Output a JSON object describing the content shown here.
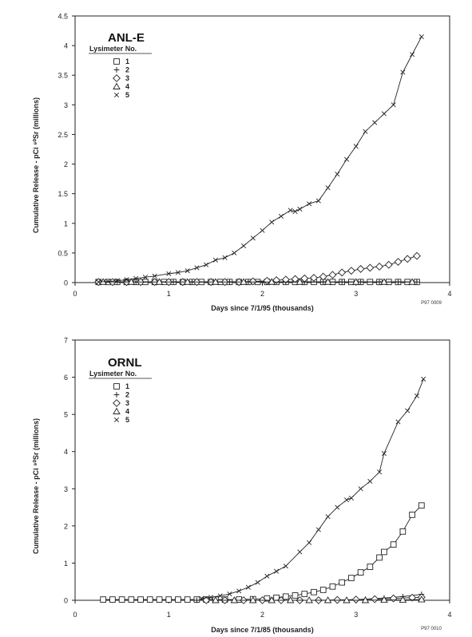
{
  "chart_data": [
    {
      "type": "line",
      "title": "ANL-E",
      "xlabel": "Days since 7/1/95 (thousands)",
      "ylabel": "Cumulative Release - pCi ⁹⁰Sr (millions)",
      "note": "P97 0009",
      "legend_title": "Lysimeter No.",
      "legend_position": "top-left",
      "xlim": [
        0,
        4
      ],
      "ylim": [
        0,
        4.5
      ],
      "xticks": [
        "0",
        "1",
        "2",
        "3",
        "4"
      ],
      "yticks": [
        "0",
        "0.5",
        "1",
        "1.5",
        "2",
        "2.5",
        "3",
        "3.5",
        "4",
        "4.5"
      ],
      "series": [
        {
          "name": "1",
          "marker": "square",
          "x": [
            0.25,
            0.35,
            0.45,
            0.55,
            0.65,
            0.75,
            0.85,
            0.95,
            1.05,
            1.15,
            1.25,
            1.35,
            1.45,
            1.55,
            1.65,
            1.75,
            1.85,
            1.95,
            2.05,
            2.15,
            2.25,
            2.35,
            2.45,
            2.55,
            2.65,
            2.75,
            2.85,
            2.95,
            3.05,
            3.15,
            3.25,
            3.35,
            3.45,
            3.55,
            3.65
          ],
          "y": [
            0.01,
            0.01,
            0.01,
            0.01,
            0.01,
            0.01,
            0.01,
            0.01,
            0.01,
            0.01,
            0.01,
            0.01,
            0.01,
            0.01,
            0.01,
            0.01,
            0.01,
            0.01,
            0.01,
            0.01,
            0.01,
            0.01,
            0.01,
            0.01,
            0.01,
            0.01,
            0.01,
            0.01,
            0.01,
            0.01,
            0.01,
            0.01,
            0.01,
            0.01,
            0.01
          ]
        },
        {
          "name": "2",
          "marker": "plus",
          "x": [
            0.25,
            0.45,
            0.65,
            0.85,
            1.05,
            1.25,
            1.45,
            1.65,
            1.85,
            2.05,
            2.25,
            2.45,
            2.65,
            2.85,
            3.05,
            3.25,
            3.45,
            3.65
          ],
          "y": [
            0.01,
            0.01,
            0.01,
            0.01,
            0.01,
            0.01,
            0.01,
            0.01,
            0.01,
            0.01,
            0.01,
            0.01,
            0.01,
            0.01,
            0.01,
            0.01,
            0.01,
            0.01
          ]
        },
        {
          "name": "3",
          "marker": "diamond",
          "x": [
            0.25,
            0.4,
            0.55,
            0.7,
            0.85,
            1.0,
            1.15,
            1.3,
            1.45,
            1.6,
            1.75,
            1.9,
            2.05,
            2.15,
            2.25,
            2.35,
            2.45,
            2.55,
            2.65,
            2.75,
            2.85,
            2.95,
            3.05,
            3.15,
            3.25,
            3.35,
            3.45,
            3.55,
            3.65
          ],
          "y": [
            0.01,
            0.01,
            0.01,
            0.01,
            0.01,
            0.01,
            0.01,
            0.01,
            0.01,
            0.01,
            0.01,
            0.02,
            0.03,
            0.04,
            0.05,
            0.06,
            0.07,
            0.08,
            0.1,
            0.13,
            0.17,
            0.2,
            0.23,
            0.25,
            0.27,
            0.3,
            0.35,
            0.4,
            0.45
          ]
        },
        {
          "name": "4",
          "marker": "triangle",
          "x": [
            0.3,
            0.6,
            0.9,
            1.2,
            1.5,
            1.8,
            2.1,
            2.4,
            2.7,
            3.0,
            3.3,
            3.6
          ],
          "y": [
            0.01,
            0.01,
            0.01,
            0.01,
            0.01,
            0.01,
            0.01,
            0.01,
            0.01,
            0.01,
            0.01,
            0.01
          ]
        },
        {
          "name": "5",
          "marker": "x",
          "x": [
            0.25,
            0.35,
            0.45,
            0.55,
            0.65,
            0.75,
            0.85,
            1.0,
            1.1,
            1.2,
            1.3,
            1.4,
            1.5,
            1.6,
            1.7,
            1.8,
            1.9,
            2.0,
            2.1,
            2.2,
            2.3,
            2.35,
            2.4,
            2.5,
            2.6,
            2.7,
            2.8,
            2.9,
            3.0,
            3.1,
            3.2,
            3.3,
            3.4,
            3.5,
            3.6,
            3.7
          ],
          "y": [
            0.01,
            0.02,
            0.03,
            0.05,
            0.07,
            0.09,
            0.11,
            0.15,
            0.17,
            0.2,
            0.25,
            0.3,
            0.38,
            0.42,
            0.5,
            0.62,
            0.75,
            0.88,
            1.02,
            1.12,
            1.22,
            1.2,
            1.24,
            1.33,
            1.38,
            1.6,
            1.83,
            2.08,
            2.3,
            2.55,
            2.7,
            2.85,
            3.0,
            3.55,
            3.85,
            4.15
          ]
        }
      ]
    },
    {
      "type": "line",
      "title": "ORNL",
      "xlabel": "Days since 7/1/85 (thousands)",
      "ylabel": "Cumulative Release - pCi ⁹⁰Sr (millions)",
      "note": "P97 0010",
      "legend_title": "Lysimeter No.",
      "legend_position": "top-left",
      "xlim": [
        0,
        4
      ],
      "ylim": [
        0,
        7
      ],
      "xticks": [
        "0",
        "1",
        "2",
        "3",
        "4"
      ],
      "yticks": [
        "0",
        "1",
        "2",
        "3",
        "4",
        "5",
        "6",
        "7"
      ],
      "series": [
        {
          "name": "1",
          "marker": "square",
          "x": [
            0.3,
            0.4,
            0.5,
            0.6,
            0.7,
            0.8,
            0.9,
            1.0,
            1.1,
            1.2,
            1.3,
            1.4,
            1.5,
            1.6,
            1.75,
            1.9,
            2.05,
            2.15,
            2.25,
            2.35,
            2.45,
            2.55,
            2.65,
            2.75,
            2.85,
            2.95,
            3.05,
            3.15,
            3.25,
            3.3,
            3.4,
            3.5,
            3.6,
            3.7
          ],
          "y": [
            0.02,
            0.02,
            0.02,
            0.02,
            0.02,
            0.02,
            0.02,
            0.02,
            0.02,
            0.02,
            0.02,
            0.02,
            0.02,
            0.02,
            0.02,
            0.03,
            0.05,
            0.07,
            0.1,
            0.13,
            0.17,
            0.22,
            0.28,
            0.37,
            0.48,
            0.6,
            0.75,
            0.9,
            1.15,
            1.3,
            1.5,
            1.85,
            2.3,
            2.55
          ]
        },
        {
          "name": "2",
          "marker": "plus",
          "x": [
            1.3,
            1.5,
            1.7,
            1.9,
            2.1,
            2.3,
            2.5,
            2.7,
            2.9,
            3.1,
            3.3,
            3.5,
            3.7
          ],
          "y": [
            0.0,
            0.0,
            0.0,
            0.0,
            0.0,
            0.0,
            0.0,
            0.0,
            0.01,
            0.03,
            0.06,
            0.1,
            0.16
          ]
        },
        {
          "name": "3",
          "marker": "diamond",
          "x": [
            1.4,
            1.6,
            1.8,
            2.0,
            2.2,
            2.4,
            2.6,
            2.8,
            3.0,
            3.2,
            3.4,
            3.6,
            3.7
          ],
          "y": [
            0.0,
            0.0,
            0.0,
            0.0,
            0.0,
            0.0,
            0.0,
            0.01,
            0.02,
            0.03,
            0.05,
            0.07,
            0.08
          ]
        },
        {
          "name": "4",
          "marker": "triangle",
          "x": [
            1.5,
            1.7,
            1.9,
            2.1,
            2.3,
            2.5,
            2.7,
            2.9,
            3.1,
            3.3,
            3.5,
            3.7
          ],
          "y": [
            0.0,
            0.0,
            0.0,
            0.0,
            0.0,
            0.0,
            0.0,
            0.0,
            0.0,
            0.01,
            0.01,
            0.02
          ]
        },
        {
          "name": "5",
          "marker": "x",
          "x": [
            1.35,
            1.45,
            1.55,
            1.65,
            1.75,
            1.85,
            1.95,
            2.05,
            2.15,
            2.25,
            2.4,
            2.5,
            2.6,
            2.7,
            2.8,
            2.9,
            2.95,
            3.05,
            3.15,
            3.25,
            3.3,
            3.45,
            3.55,
            3.65,
            3.72
          ],
          "y": [
            0.05,
            0.08,
            0.12,
            0.17,
            0.25,
            0.35,
            0.48,
            0.65,
            0.78,
            0.92,
            1.3,
            1.55,
            1.9,
            2.25,
            2.5,
            2.7,
            2.75,
            3.0,
            3.2,
            3.45,
            3.95,
            4.8,
            5.1,
            5.5,
            5.95
          ]
        }
      ]
    }
  ]
}
